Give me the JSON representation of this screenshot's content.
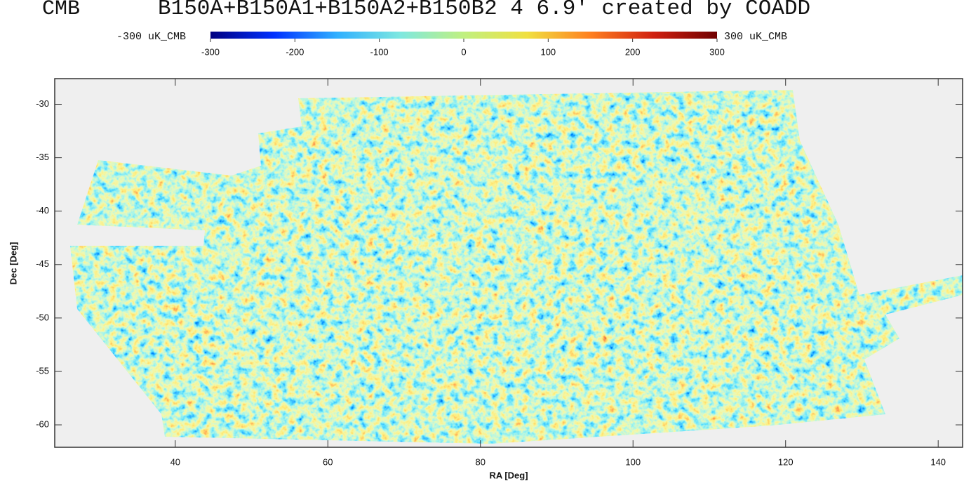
{
  "chart_data": {
    "type": "map",
    "label": "CMB",
    "title": "B150A+B150A1+B150A2+B150B2 4 6.9' created by COADD",
    "colorbar_min_label": "-300 uK_CMB",
    "colorbar_max_label": "300 uK_CMB",
    "clim": [
      -300,
      300
    ],
    "cticks": [
      -300,
      -200,
      -100,
      0,
      100,
      200,
      300
    ],
    "colormap": [
      "#00007f",
      "#0030ff",
      "#30b0ff",
      "#7fe8e0",
      "#c0f080",
      "#f0e040",
      "#ff8020",
      "#d02010",
      "#700000"
    ],
    "xlabel": "RA [Deg]",
    "ylabel": "Dec [Deg]",
    "xlim": [
      24.2,
      143.2
    ],
    "xticks": [
      40,
      60,
      80,
      100,
      120,
      140
    ],
    "ylim": [
      -62.1,
      -27.6
    ],
    "yticks": [
      -30,
      -35,
      -40,
      -45,
      -50,
      -55,
      -60
    ]
  }
}
